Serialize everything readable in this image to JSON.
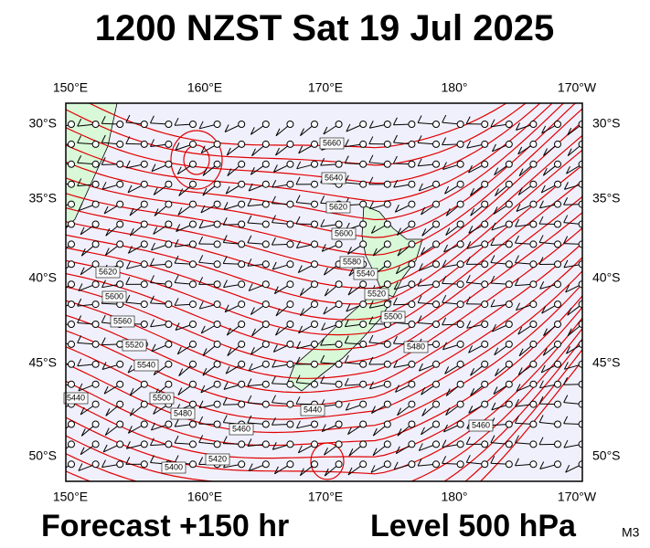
{
  "header": {
    "title": "1200 NZST Sat 19 Jul 2025"
  },
  "map": {
    "longitude_labels_top": [
      "150°E",
      "160°E",
      "170°E",
      "180°",
      "170°W"
    ],
    "longitude_labels_bottom": [
      "150°E",
      "160°E",
      "170°E",
      "180°",
      "170°W"
    ],
    "latitude_labels_left": [
      "30°S",
      "35°S",
      "40°S",
      "45°S",
      "50°S"
    ],
    "latitude_labels_right": [
      "30°S",
      "35°S",
      "40°S",
      "45°S",
      "50°S"
    ],
    "contour_labels": [
      "5660",
      "5640",
      "5620",
      "5600",
      "5580",
      "5540",
      "5520",
      "5500",
      "5480",
      "5620",
      "5600",
      "5560",
      "5520",
      "5540",
      "5500",
      "5480",
      "5460",
      "5440",
      "5420",
      "5400",
      "5440",
      "5460"
    ]
  },
  "footer": {
    "forecast": "Forecast +150 hr",
    "level": "Level 500 hPa",
    "model": "M3"
  }
}
